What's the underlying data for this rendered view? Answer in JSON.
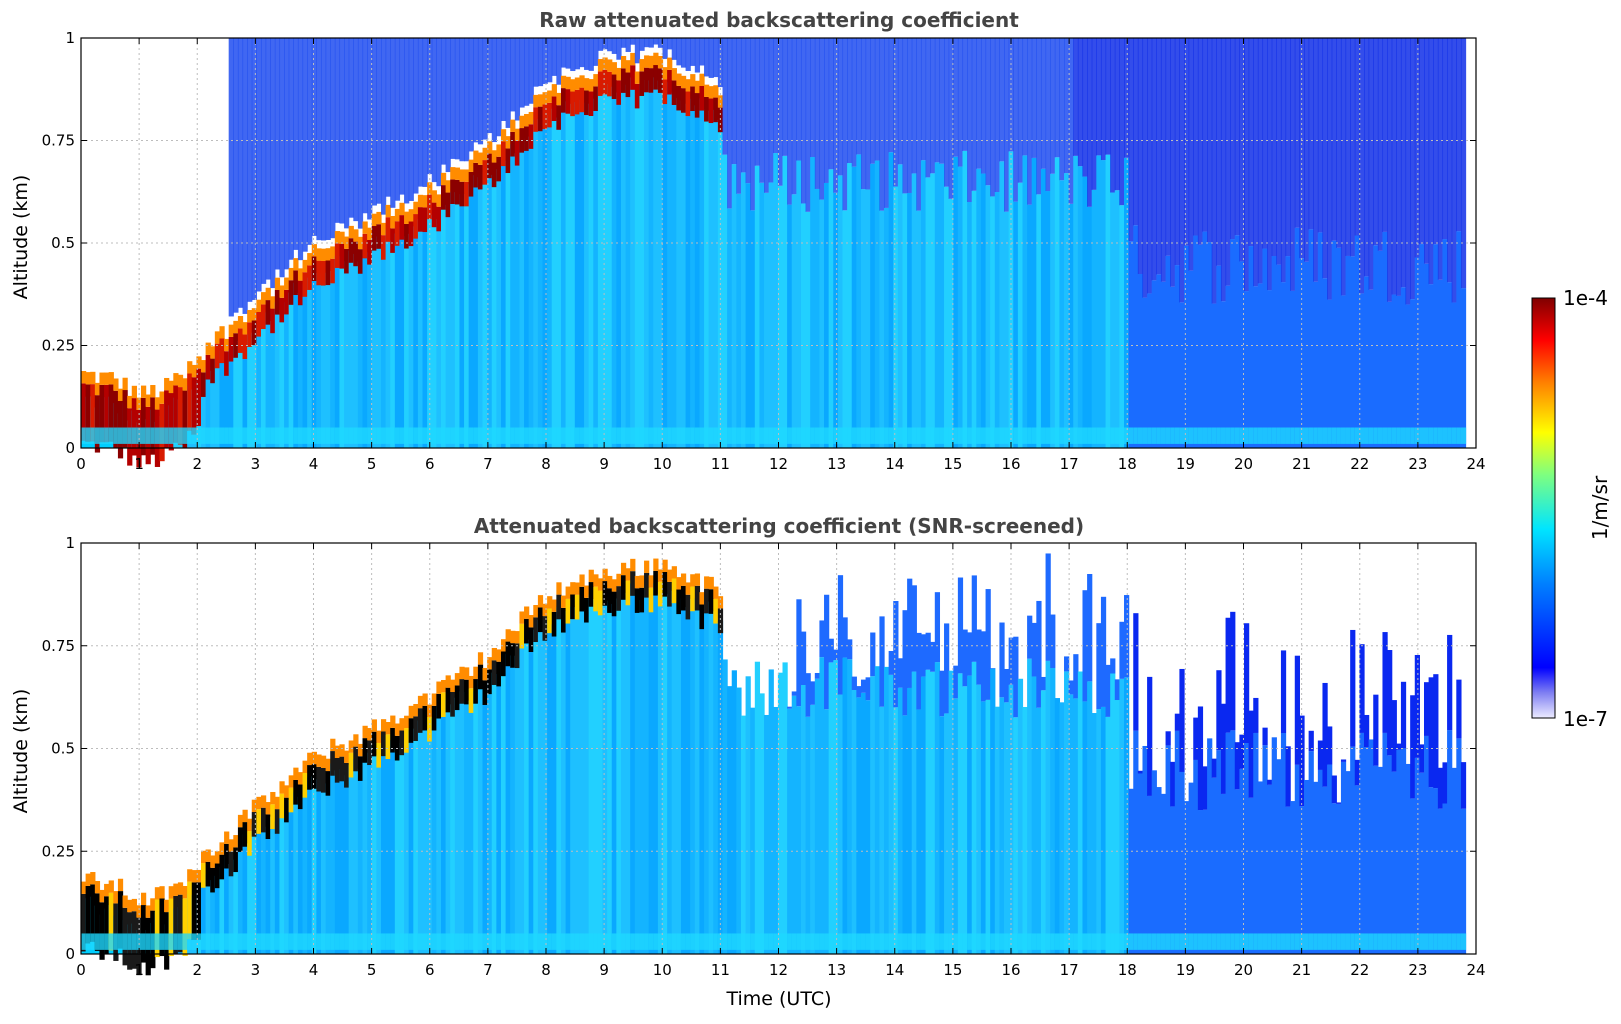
{
  "figure": {
    "xlabel": "Time (UTC)",
    "colorbar": {
      "label": "1/m/sr",
      "max_label": "1e-4",
      "min_label": "1e-7",
      "scale": "log"
    }
  },
  "chart_data": [
    {
      "type": "heatmap",
      "title": "Raw attenuated backscattering coefficient",
      "xlabel": "",
      "ylabel": "Altitude (km)",
      "xlim": [
        0,
        24
      ],
      "ylim": [
        0,
        1
      ],
      "x_ticks": [
        "0",
        "1",
        "2",
        "3",
        "4",
        "5",
        "6",
        "7",
        "8",
        "9",
        "10",
        "11",
        "12",
        "13",
        "14",
        "15",
        "16",
        "17",
        "18",
        "19",
        "20",
        "21",
        "22",
        "23",
        "24"
      ],
      "y_ticks": [
        "0",
        "0.25",
        "0.5",
        "0.75",
        "1"
      ],
      "grid": true,
      "colorscale": "jet",
      "boundary_layer_top_km": {
        "time_utc": [
          0,
          0.5,
          1,
          1.5,
          2,
          3,
          4,
          5,
          6,
          7,
          8,
          9,
          10,
          11
        ],
        "altitude_km": [
          0.15,
          0.14,
          0.1,
          0.12,
          0.2,
          0.33,
          0.45,
          0.52,
          0.6,
          0.7,
          0.85,
          0.9,
          0.92,
          0.85
        ]
      }
    },
    {
      "type": "heatmap",
      "title": "Attenuated backscattering coefficient (SNR-screened)",
      "xlabel": "Time (UTC)",
      "ylabel": "Altitude (km)",
      "xlim": [
        0,
        24
      ],
      "ylim": [
        0,
        1
      ],
      "x_ticks": [
        "0",
        "1",
        "2",
        "3",
        "4",
        "5",
        "6",
        "7",
        "8",
        "9",
        "10",
        "11",
        "12",
        "13",
        "14",
        "15",
        "16",
        "17",
        "18",
        "19",
        "20",
        "21",
        "22",
        "23",
        "24"
      ],
      "y_ticks": [
        "0",
        "0.25",
        "0.5",
        "0.75",
        "1"
      ],
      "grid": true,
      "colorscale": "jet",
      "boundary_layer_top_km": {
        "time_utc": [
          0,
          0.5,
          1,
          1.5,
          2,
          3,
          4,
          5,
          6,
          7,
          8,
          9,
          10,
          11
        ],
        "altitude_km": [
          0.15,
          0.14,
          0.1,
          0.12,
          0.2,
          0.33,
          0.45,
          0.52,
          0.6,
          0.7,
          0.85,
          0.9,
          0.92,
          0.85
        ]
      }
    }
  ]
}
